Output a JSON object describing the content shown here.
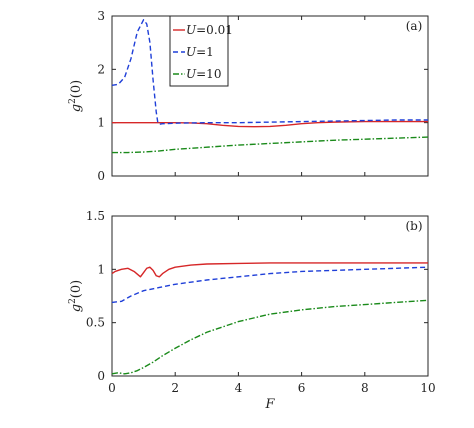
{
  "chart_data": [
    {
      "panel_id": "a",
      "type": "line",
      "panel_label": "(a)",
      "xlabel": "",
      "ylabel": "g2(0)",
      "ylabel_main": "g",
      "ylabel_sup": "2",
      "ylabel_rest": "(0)",
      "xlim": [
        0,
        10
      ],
      "ylim": [
        0,
        3
      ],
      "yticks": [
        0,
        1,
        2,
        3
      ],
      "ytick_labels": [
        "0",
        "1",
        "2",
        "3"
      ],
      "xticks": [
        0,
        2,
        4,
        6,
        8,
        10
      ],
      "xtick_labels": [],
      "legend": {
        "position": "top-center",
        "entries": [
          {
            "series_index": 0,
            "label_var": "U",
            "label_rest": "=0.01"
          },
          {
            "series_index": 1,
            "label_var": "U",
            "label_rest": "=1"
          },
          {
            "series_index": 2,
            "label_var": "U",
            "label_rest": "=10"
          }
        ]
      },
      "series": [
        {
          "name": "U=0.01",
          "color": "#d62728",
          "dash": "solid",
          "x": [
            0,
            1,
            2,
            2.5,
            3,
            3.5,
            4,
            4.5,
            5,
            5.5,
            6,
            6.5,
            7,
            8,
            9,
            10
          ],
          "y": [
            1.0,
            1.0,
            1.0,
            0.995,
            0.98,
            0.95,
            0.93,
            0.925,
            0.93,
            0.95,
            0.98,
            1.0,
            1.01,
            1.02,
            1.02,
            1.02
          ]
        },
        {
          "name": "U=1",
          "color": "#1f3fd8",
          "dash": "dashed",
          "x": [
            0,
            0.2,
            0.4,
            0.6,
            0.8,
            1.0,
            1.1,
            1.2,
            1.3,
            1.4,
            1.45,
            1.5,
            1.6,
            2,
            3,
            4,
            5,
            6,
            7,
            8,
            9,
            10
          ],
          "y": [
            1.7,
            1.72,
            1.85,
            2.2,
            2.7,
            2.93,
            2.85,
            2.5,
            1.8,
            1.2,
            1.0,
            0.97,
            0.98,
            0.99,
            1.0,
            1.0,
            1.01,
            1.02,
            1.03,
            1.04,
            1.05,
            1.05
          ]
        },
        {
          "name": "U=10",
          "color": "#1a8a1a",
          "dash": "dashdot",
          "x": [
            0,
            0.5,
            1,
            1.5,
            2,
            3,
            4,
            5,
            6,
            7,
            8,
            9,
            10
          ],
          "y": [
            0.44,
            0.44,
            0.45,
            0.47,
            0.5,
            0.54,
            0.58,
            0.61,
            0.64,
            0.67,
            0.69,
            0.71,
            0.73
          ]
        }
      ]
    },
    {
      "panel_id": "b",
      "type": "line",
      "panel_label": "(b)",
      "xlabel": "F",
      "ylabel": "g2(0)",
      "ylabel_main": "g",
      "ylabel_sup": "2",
      "ylabel_rest": "(0)",
      "xlim": [
        0,
        10
      ],
      "ylim": [
        0,
        1.5
      ],
      "yticks": [
        0,
        0.5,
        1,
        1.5
      ],
      "ytick_labels": [
        "0",
        "0.5",
        "1",
        "1.5"
      ],
      "xticks": [
        0,
        2,
        4,
        6,
        8,
        10
      ],
      "xtick_labels": [
        "0",
        "2",
        "4",
        "6",
        "8",
        "10"
      ],
      "series": [
        {
          "name": "U=0.01",
          "color": "#d62728",
          "dash": "solid",
          "x": [
            0,
            0.1,
            0.3,
            0.5,
            0.7,
            0.9,
            1.0,
            1.1,
            1.2,
            1.3,
            1.4,
            1.5,
            1.6,
            1.8,
            2,
            2.5,
            3,
            4,
            5,
            6,
            7,
            8,
            9,
            10
          ],
          "y": [
            0.96,
            0.98,
            1.0,
            1.01,
            0.98,
            0.93,
            0.97,
            1.01,
            1.02,
            0.99,
            0.94,
            0.93,
            0.96,
            1.0,
            1.02,
            1.04,
            1.05,
            1.055,
            1.06,
            1.06,
            1.06,
            1.06,
            1.06,
            1.06
          ]
        },
        {
          "name": "U=1",
          "color": "#1f3fd8",
          "dash": "dashed",
          "x": [
            0,
            0.3,
            0.6,
            1.0,
            1.5,
            2,
            3,
            4,
            5,
            6,
            7,
            8,
            9,
            10
          ],
          "y": [
            0.69,
            0.7,
            0.75,
            0.8,
            0.83,
            0.86,
            0.9,
            0.93,
            0.96,
            0.98,
            0.99,
            1.0,
            1.01,
            1.02
          ]
        },
        {
          "name": "U=10",
          "color": "#1a8a1a",
          "dash": "dashdot",
          "x": [
            0,
            0.2,
            0.4,
            0.6,
            0.8,
            1.0,
            1.3,
            1.6,
            2,
            2.5,
            3,
            3.5,
            4,
            5,
            6,
            7,
            8,
            9,
            10
          ],
          "y": [
            0.02,
            0.03,
            0.02,
            0.03,
            0.05,
            0.08,
            0.13,
            0.19,
            0.26,
            0.34,
            0.41,
            0.46,
            0.51,
            0.58,
            0.62,
            0.65,
            0.67,
            0.69,
            0.71
          ]
        }
      ]
    }
  ]
}
